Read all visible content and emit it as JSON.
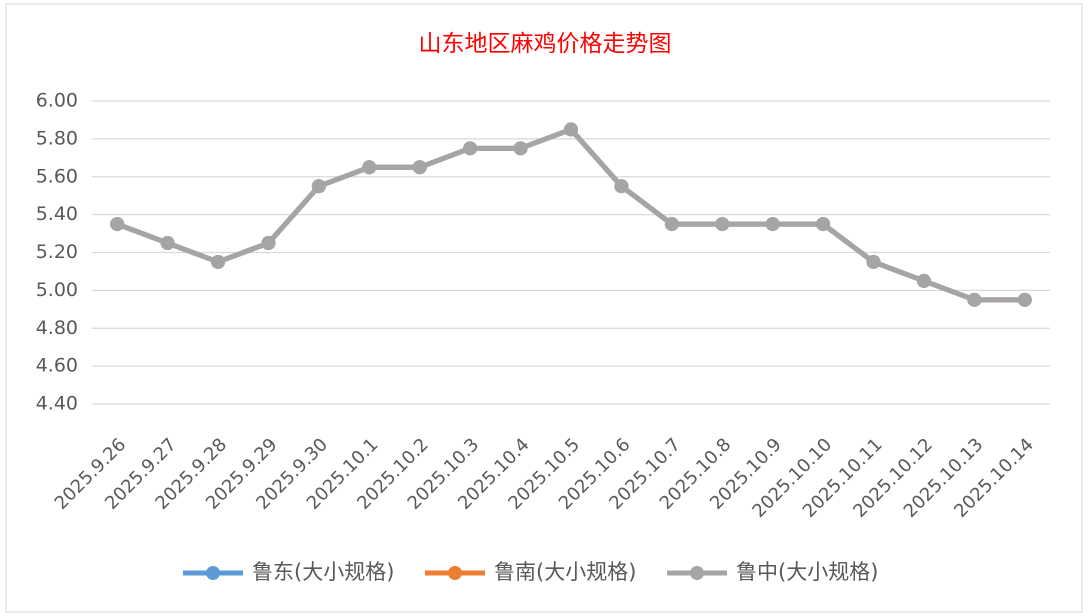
{
  "chart_data": {
    "type": "line",
    "title": "山东地区麻鸡价格走势图",
    "categories": [
      "2025.9.26",
      "2025.9.27",
      "2025.9.28",
      "2025.9.29",
      "2025.9.30",
      "2025.10.1",
      "2025.10.2",
      "2025.10.3",
      "2025.10.4",
      "2025.10.5",
      "2025.10.6",
      "2025.10.7",
      "2025.10.8",
      "2025.10.9",
      "2025.10.10",
      "2025.10.11",
      "2025.10.12",
      "2025.10.13",
      "2025.10.14"
    ],
    "series": [
      {
        "name": "鲁东(大小规格)",
        "color": "#5b9bd5",
        "values": [
          5.35,
          5.25,
          5.15,
          5.25,
          5.55,
          5.65,
          5.65,
          5.75,
          5.75,
          5.85,
          5.55,
          5.35,
          5.35,
          5.35,
          5.35,
          5.15,
          5.05,
          4.95,
          4.95
        ]
      },
      {
        "name": "鲁南(大小规格)",
        "color": "#ed7d31",
        "values": [
          5.35,
          5.25,
          5.15,
          5.25,
          5.55,
          5.65,
          5.65,
          5.75,
          5.75,
          5.85,
          5.55,
          5.35,
          5.35,
          5.35,
          5.35,
          5.15,
          5.05,
          4.95,
          4.95
        ]
      },
      {
        "name": "鲁中(大小规格)",
        "color": "#a5a5a5",
        "values": [
          5.35,
          5.25,
          5.15,
          5.25,
          5.55,
          5.65,
          5.65,
          5.75,
          5.75,
          5.85,
          5.55,
          5.35,
          5.35,
          5.35,
          5.35,
          5.15,
          5.05,
          4.95,
          4.95
        ]
      }
    ],
    "ylim": [
      4.4,
      6.0
    ],
    "yticks": [
      {
        "value": 4.4,
        "label": "4.40"
      },
      {
        "value": 4.6,
        "label": "4.60"
      },
      {
        "value": 4.8,
        "label": "4.80"
      },
      {
        "value": 5.0,
        "label": "5.00"
      },
      {
        "value": 5.2,
        "label": "5.20"
      },
      {
        "value": 5.4,
        "label": "5.40"
      },
      {
        "value": 5.6,
        "label": "5.60"
      },
      {
        "value": 5.8,
        "label": "5.80"
      },
      {
        "value": 6.0,
        "label": "6.00"
      }
    ],
    "grid": true,
    "legend": "bottom"
  }
}
